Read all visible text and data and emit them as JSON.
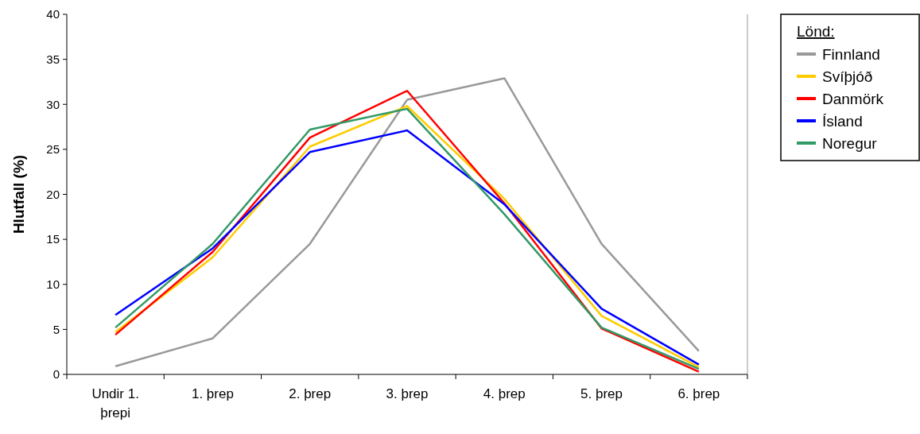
{
  "chart_data": {
    "type": "line",
    "ylabel": "Hlutfall (%)",
    "legend_title": "Lönd:",
    "legend": "right",
    "grid": false,
    "categories": [
      "Undir 1. þrepi",
      "1. þrep",
      "2. þrep",
      "3. þrep",
      "4. þrep",
      "5. þrep",
      "6. þrep"
    ],
    "ylim": [
      0,
      40
    ],
    "yticks": [
      0,
      5,
      10,
      15,
      20,
      25,
      30,
      35,
      40
    ],
    "series": [
      {
        "name": "Finnland",
        "color": "#999999",
        "values": [
          0.9,
          4.0,
          14.5,
          30.5,
          32.9,
          14.5,
          2.6
        ]
      },
      {
        "name": "Svíþjóð",
        "color": "#ffcc00",
        "values": [
          4.7,
          13.0,
          25.3,
          29.8,
          19.5,
          6.5,
          0.8
        ]
      },
      {
        "name": "Danmörk",
        "color": "#ff0000",
        "values": [
          4.4,
          13.6,
          26.3,
          31.5,
          19.0,
          5.1,
          0.3
        ]
      },
      {
        "name": "Ísland",
        "color": "#0000ff",
        "values": [
          6.6,
          14.0,
          24.7,
          27.1,
          18.9,
          7.3,
          1.1
        ]
      },
      {
        "name": "Noregur",
        "color": "#339966",
        "values": [
          5.2,
          14.5,
          27.2,
          29.5,
          17.8,
          5.2,
          0.6
        ]
      }
    ]
  }
}
